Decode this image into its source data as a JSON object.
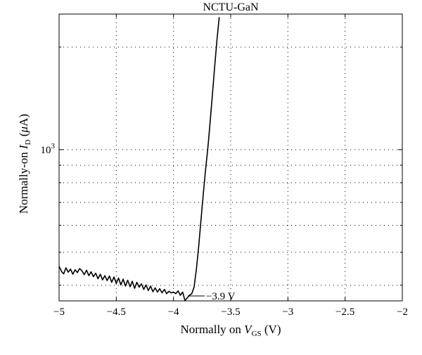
{
  "chart_data": {
    "type": "line",
    "title": "NCTU-GaN",
    "xlabel": {
      "prefix": "Normally on ",
      "var": "V",
      "sub": "GS",
      "suffix": " (V)"
    },
    "ylabel": {
      "prefix": "Normally-on ",
      "var": "I",
      "sub": "D",
      "suffix": " (",
      "unit_mu": "μ",
      "unit_rest": "A)"
    },
    "x_ticks": [
      -5,
      -4.5,
      -4,
      -3.5,
      -3,
      -2.5,
      -2
    ],
    "x_tick_labels": [
      "−5",
      "−4.5",
      "−4",
      "−3.5",
      "−3",
      "−2.5",
      "−2"
    ],
    "xlim": [
      -5,
      -2
    ],
    "y_scale": "log",
    "ylim": [
      360,
      2500
    ],
    "y_tick_label": {
      "base": "10",
      "exp": "3"
    },
    "grid": true,
    "annotation": "−3.9 V",
    "series": [
      {
        "x": [
          -5.0,
          -4.98,
          -4.96,
          -4.94,
          -4.92,
          -4.9,
          -4.88,
          -4.86,
          -4.84,
          -4.82,
          -4.8,
          -4.78,
          -4.76,
          -4.74,
          -4.72,
          -4.7,
          -4.68,
          -4.66,
          -4.64,
          -4.62,
          -4.6,
          -4.58,
          -4.56,
          -4.54,
          -4.52,
          -4.5,
          -4.48,
          -4.46,
          -4.44,
          -4.42,
          -4.4,
          -4.38,
          -4.36,
          -4.34,
          -4.32,
          -4.3,
          -4.28,
          -4.26,
          -4.24,
          -4.22,
          -4.2,
          -4.18,
          -4.16,
          -4.14,
          -4.12,
          -4.1,
          -4.08,
          -4.06,
          -4.04,
          -4.02,
          -4.0,
          -3.98,
          -3.96,
          -3.94,
          -3.92,
          -3.9,
          -3.88,
          -3.86,
          -3.84,
          -3.82,
          -3.8,
          -3.78,
          -3.76,
          -3.74,
          -3.72,
          -3.7,
          -3.68,
          -3.66,
          -3.64,
          -3.62,
          -3.6
        ],
        "y": [
          455,
          440,
          432,
          450,
          437,
          446,
          431,
          444,
          436,
          448,
          441,
          430,
          443,
          427,
          438,
          424,
          434,
          418,
          431,
          415,
          427,
          413,
          426,
          408,
          423,
          405,
          420,
          401,
          417,
          398,
          414,
          396,
          411,
          392,
          408,
          395,
          404,
          389,
          401,
          386,
          398,
          383,
          393,
          382,
          391,
          380,
          389,
          378,
          384,
          380,
          382,
          378,
          385,
          374,
          382,
          361,
          367,
          374,
          378,
          395,
          445,
          520,
          620,
          740,
          870,
          1010,
          1200,
          1450,
          1750,
          2100,
          2450
        ]
      }
    ]
  }
}
